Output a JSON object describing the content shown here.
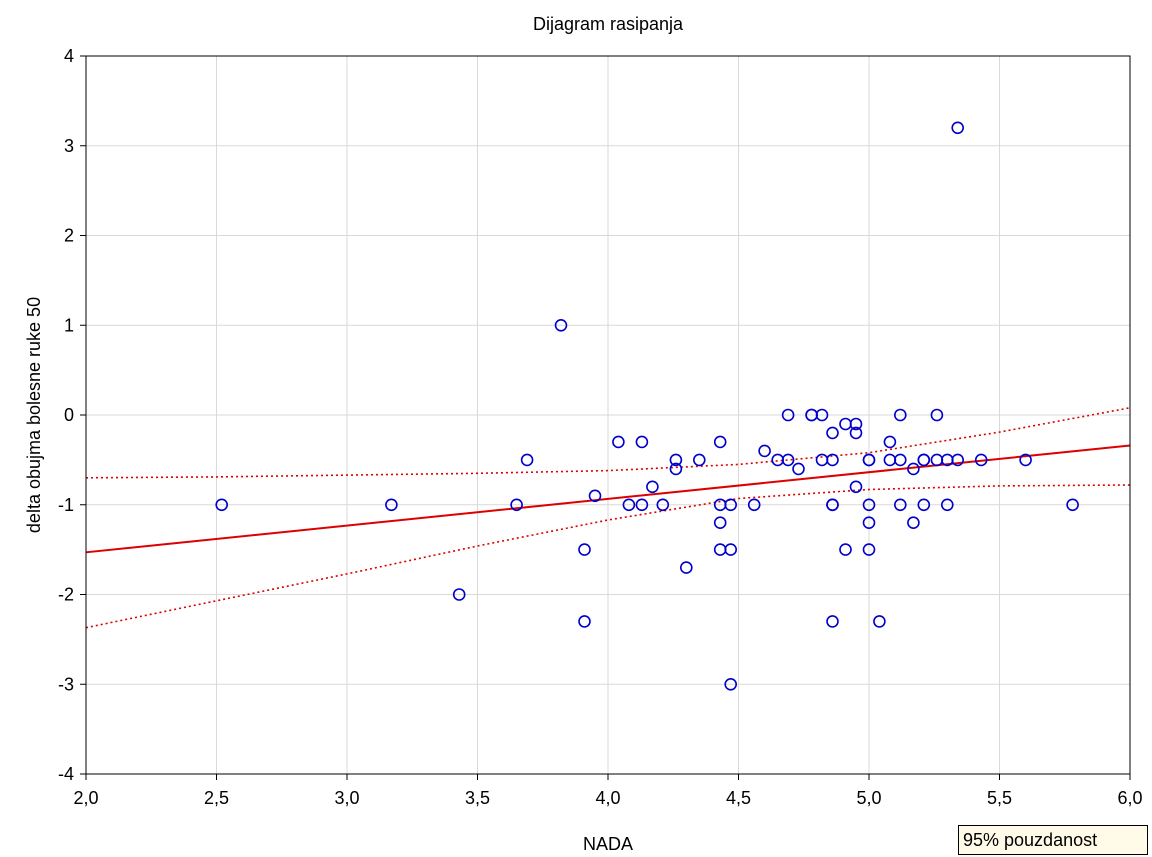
{
  "chart_data": {
    "type": "scatter",
    "title": "Dijagram rasipanja",
    "xlabel": "NADA",
    "ylabel": "delta obujma bolesne ruke 50",
    "xlim": [
      2.0,
      6.0
    ],
    "ylim": [
      -4,
      4
    ],
    "x_ticks": [
      "2,0",
      "2,5",
      "3,0",
      "3,5",
      "4,0",
      "4,5",
      "5,0",
      "5,5",
      "6,0"
    ],
    "y_ticks": [
      "4",
      "3",
      "2",
      "1",
      "0",
      "-1",
      "-2",
      "-3",
      "-4"
    ],
    "grid": true,
    "colors": {
      "points": "#0000cc",
      "regression": "#dd0000"
    },
    "regression_line": {
      "x": [
        2.0,
        6.0
      ],
      "y": [
        -1.53,
        -0.34
      ]
    },
    "confidence_band_label": "95% pouzdanost",
    "confidence_upper": {
      "x": [
        2.0,
        2.5,
        3.0,
        3.5,
        4.0,
        4.5,
        5.0,
        5.5,
        6.0
      ],
      "y": [
        -0.7,
        -0.69,
        -0.67,
        -0.65,
        -0.62,
        -0.55,
        -0.42,
        -0.19,
        0.08
      ]
    },
    "confidence_lower": {
      "x": [
        2.0,
        2.5,
        3.0,
        3.5,
        4.0,
        4.5,
        5.0,
        5.5,
        6.0
      ],
      "y": [
        -2.37,
        -2.07,
        -1.77,
        -1.46,
        -1.17,
        -0.93,
        -0.83,
        -0.79,
        -0.78
      ]
    },
    "points": [
      {
        "x": 2.52,
        "y": -1.0
      },
      {
        "x": 3.17,
        "y": -1.0
      },
      {
        "x": 3.43,
        "y": -2.0
      },
      {
        "x": 3.65,
        "y": -1.0
      },
      {
        "x": 3.69,
        "y": -0.5
      },
      {
        "x": 3.82,
        "y": 1.0
      },
      {
        "x": 3.91,
        "y": -1.5
      },
      {
        "x": 3.91,
        "y": -2.3
      },
      {
        "x": 3.95,
        "y": -0.9
      },
      {
        "x": 4.04,
        "y": -0.3
      },
      {
        "x": 4.08,
        "y": -1.0
      },
      {
        "x": 4.13,
        "y": -1.0
      },
      {
        "x": 4.13,
        "y": -0.3
      },
      {
        "x": 4.17,
        "y": -0.8
      },
      {
        "x": 4.21,
        "y": -1.0
      },
      {
        "x": 4.26,
        "y": -0.5
      },
      {
        "x": 4.26,
        "y": -0.6
      },
      {
        "x": 4.3,
        "y": -1.7
      },
      {
        "x": 4.35,
        "y": -0.5
      },
      {
        "x": 4.43,
        "y": -0.3
      },
      {
        "x": 4.43,
        "y": -1.0
      },
      {
        "x": 4.43,
        "y": -1.2
      },
      {
        "x": 4.43,
        "y": -1.5
      },
      {
        "x": 4.47,
        "y": -1.0
      },
      {
        "x": 4.47,
        "y": -1.5
      },
      {
        "x": 4.47,
        "y": -3.0
      },
      {
        "x": 4.56,
        "y": -1.0
      },
      {
        "x": 4.6,
        "y": -0.4
      },
      {
        "x": 4.65,
        "y": -0.5
      },
      {
        "x": 4.69,
        "y": 0.0
      },
      {
        "x": 4.69,
        "y": -0.5
      },
      {
        "x": 4.73,
        "y": -0.6
      },
      {
        "x": 4.78,
        "y": 0.0
      },
      {
        "x": 4.78,
        "y": 0.0
      },
      {
        "x": 4.82,
        "y": 0.0
      },
      {
        "x": 4.82,
        "y": -0.5
      },
      {
        "x": 4.86,
        "y": -0.2
      },
      {
        "x": 4.86,
        "y": -0.5
      },
      {
        "x": 4.86,
        "y": -1.0
      },
      {
        "x": 4.86,
        "y": -1.0
      },
      {
        "x": 4.86,
        "y": -2.3
      },
      {
        "x": 4.91,
        "y": -0.1
      },
      {
        "x": 4.91,
        "y": -1.5
      },
      {
        "x": 4.95,
        "y": -0.1
      },
      {
        "x": 4.95,
        "y": -0.2
      },
      {
        "x": 4.95,
        "y": -0.8
      },
      {
        "x": 5.0,
        "y": -0.5
      },
      {
        "x": 5.0,
        "y": -0.5
      },
      {
        "x": 5.0,
        "y": -1.0
      },
      {
        "x": 5.0,
        "y": -1.2
      },
      {
        "x": 5.0,
        "y": -1.5
      },
      {
        "x": 5.04,
        "y": -2.3
      },
      {
        "x": 5.08,
        "y": -0.3
      },
      {
        "x": 5.08,
        "y": -0.5
      },
      {
        "x": 5.12,
        "y": 0.0
      },
      {
        "x": 5.12,
        "y": -0.5
      },
      {
        "x": 5.12,
        "y": -1.0
      },
      {
        "x": 5.17,
        "y": -0.6
      },
      {
        "x": 5.17,
        "y": -1.2
      },
      {
        "x": 5.21,
        "y": -0.5
      },
      {
        "x": 5.21,
        "y": -0.5
      },
      {
        "x": 5.21,
        "y": -1.0
      },
      {
        "x": 5.26,
        "y": 0.0
      },
      {
        "x": 5.26,
        "y": -0.5
      },
      {
        "x": 5.3,
        "y": -0.5
      },
      {
        "x": 5.3,
        "y": -1.0
      },
      {
        "x": 5.34,
        "y": -0.5
      },
      {
        "x": 5.34,
        "y": 3.2
      },
      {
        "x": 5.43,
        "y": -0.5
      },
      {
        "x": 5.6,
        "y": -0.5
      },
      {
        "x": 5.78,
        "y": -1.0
      }
    ]
  }
}
